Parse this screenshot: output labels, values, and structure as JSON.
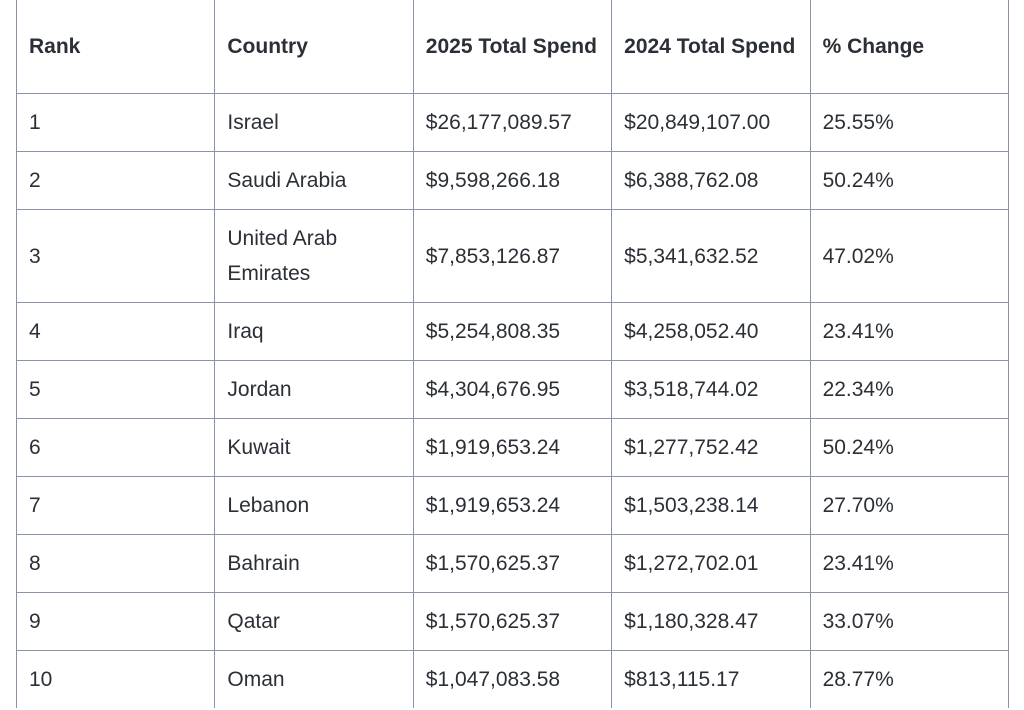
{
  "table": {
    "headers": [
      "Rank",
      "Country",
      "2025 Total Spend",
      "2024 Total Spend",
      "% Change"
    ],
    "rows": [
      [
        "1",
        "Israel",
        "$26,177,089.57",
        "$20,849,107.00",
        "25.55%"
      ],
      [
        "2",
        "Saudi Arabia",
        "$9,598,266.18",
        "$6,388,762.08",
        "50.24%"
      ],
      [
        "3",
        "United Arab Emirates",
        "$7,853,126.87",
        "$5,341,632.52",
        "47.02%"
      ],
      [
        "4",
        "Iraq",
        "$5,254,808.35",
        "$4,258,052.40",
        "23.41%"
      ],
      [
        "5",
        "Jordan",
        "$4,304,676.95",
        "$3,518,744.02",
        "22.34%"
      ],
      [
        "6",
        "Kuwait",
        "$1,919,653.24",
        "$1,277,752.42",
        "50.24%"
      ],
      [
        "7",
        "Lebanon",
        "$1,919,653.24",
        "$1,503,238.14",
        "27.70%"
      ],
      [
        "8",
        "Bahrain",
        "$1,570,625.37",
        "$1,272,702.01",
        "23.41%"
      ],
      [
        "9",
        "Qatar",
        "$1,570,625.37",
        "$1,180,328.47",
        "33.07%"
      ],
      [
        "10",
        "Oman",
        "$1,047,083.58",
        "$813,115.17",
        "28.77%"
      ]
    ]
  }
}
